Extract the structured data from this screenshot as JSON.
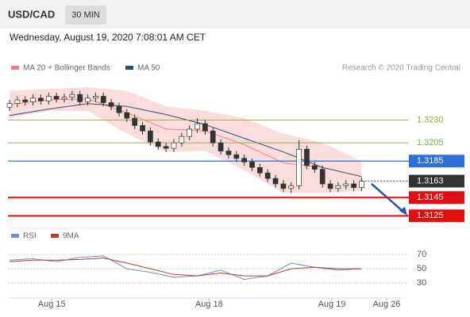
{
  "header": {
    "symbol": "USD/CAD",
    "interval": "30 MIN",
    "timestamp": "Wednesday, August 19, 2020 7:08:01 AM CET",
    "credit": "Research © 2020 Trading Central"
  },
  "chart_data": [
    {
      "type": "candlestick",
      "ylim": [
        1.3114,
        1.3279
      ],
      "xlim": [
        0,
        48.2
      ],
      "xticks": [
        {
          "value": 5.4,
          "label": "Aug 15"
        },
        {
          "value": 25.5,
          "label": "Aug 18"
        },
        {
          "value": 41.2,
          "label": "Aug 19"
        },
        {
          "value": 48.2,
          "label": "Aug 26"
        }
      ],
      "up_color": "#ffffff",
      "down_color": "#333333",
      "open": [
        1.3244,
        1.3248,
        1.3252,
        1.325,
        1.3254,
        1.3251,
        1.3256,
        1.3253,
        1.3255,
        1.3258,
        1.325,
        1.3254,
        1.3256,
        1.3249,
        1.3245,
        1.3238,
        1.3232,
        1.3224,
        1.3218,
        1.3206,
        1.3201,
        1.3199,
        1.3205,
        1.3212,
        1.322,
        1.3226,
        1.3218,
        1.3205,
        1.3196,
        1.3192,
        1.3188,
        1.3184,
        1.3178,
        1.3172,
        1.3166,
        1.316,
        1.3155,
        1.3158,
        1.3198,
        1.318,
        1.3176,
        1.316,
        1.3155,
        1.3158,
        1.316,
        1.3156
      ],
      "high": [
        1.3252,
        1.3256,
        1.3256,
        1.3258,
        1.3258,
        1.326,
        1.326,
        1.3259,
        1.3262,
        1.3262,
        1.3258,
        1.326,
        1.326,
        1.3253,
        1.3249,
        1.3242,
        1.3236,
        1.3228,
        1.3222,
        1.321,
        1.3205,
        1.3209,
        1.3216,
        1.3224,
        1.3232,
        1.323,
        1.3222,
        1.3209,
        1.32,
        1.3196,
        1.3192,
        1.3188,
        1.3182,
        1.3176,
        1.317,
        1.3164,
        1.3162,
        1.3208,
        1.3202,
        1.3184,
        1.318,
        1.3164,
        1.3162,
        1.3164,
        1.3164,
        1.3167
      ],
      "low": [
        1.324,
        1.3244,
        1.3246,
        1.3246,
        1.3247,
        1.3247,
        1.3249,
        1.3249,
        1.3251,
        1.3246,
        1.3246,
        1.325,
        1.3245,
        1.3241,
        1.3234,
        1.3228,
        1.322,
        1.3214,
        1.3202,
        1.3197,
        1.3195,
        1.3195,
        1.3201,
        1.3208,
        1.3216,
        1.3214,
        1.3201,
        1.3192,
        1.3188,
        1.3184,
        1.318,
        1.3174,
        1.3168,
        1.3162,
        1.3156,
        1.3151,
        1.315,
        1.3154,
        1.3176,
        1.3172,
        1.3156,
        1.3151,
        1.3151,
        1.3154,
        1.3152,
        1.3152
      ],
      "close": [
        1.3248,
        1.3252,
        1.325,
        1.3254,
        1.3251,
        1.3256,
        1.3253,
        1.3255,
        1.3258,
        1.325,
        1.3254,
        1.3256,
        1.3249,
        1.3245,
        1.3238,
        1.3232,
        1.3224,
        1.3218,
        1.3206,
        1.3201,
        1.3199,
        1.3205,
        1.3212,
        1.322,
        1.3226,
        1.3218,
        1.3205,
        1.3196,
        1.3192,
        1.3188,
        1.3184,
        1.3178,
        1.3172,
        1.3166,
        1.316,
        1.3155,
        1.3158,
        1.3198,
        1.318,
        1.3176,
        1.316,
        1.3155,
        1.3158,
        1.316,
        1.3156,
        1.3163
      ],
      "series": [
        {
          "name": "MA 20 + Bollinger Bands",
          "color": "#f08080",
          "x": [
            0,
            5,
            10,
            15,
            20,
            25,
            30,
            35,
            40,
            45
          ],
          "values": [
            1.3247,
            1.3252,
            1.3253,
            1.3238,
            1.322,
            1.3218,
            1.3203,
            1.3183,
            1.3178,
            1.3168
          ],
          "upper": [
            1.3262,
            1.3264,
            1.3266,
            1.3262,
            1.3245,
            1.324,
            1.3232,
            1.3215,
            1.3205,
            1.3185
          ],
          "lower": [
            1.3232,
            1.324,
            1.324,
            1.3215,
            1.3195,
            1.3196,
            1.3175,
            1.315,
            1.315,
            1.3152
          ]
        },
        {
          "name": "MA 50",
          "color": "#2b4f7a",
          "x": [
            0,
            5,
            10,
            15,
            20,
            25,
            30,
            35,
            40,
            45
          ],
          "values": [
            1.3235,
            1.3242,
            1.3248,
            1.3245,
            1.3236,
            1.3225,
            1.321,
            1.3195,
            1.3178,
            1.3168
          ]
        }
      ],
      "levels": [
        {
          "value": 1.323,
          "label": "1.3230",
          "color": "#9aa83a",
          "boxed": false
        },
        {
          "value": 1.3205,
          "label": "1.3205",
          "color": "#7cae3a",
          "boxed": false
        },
        {
          "value": 1.3185,
          "label": "1.3185",
          "color": "#2e6fd8",
          "boxed": true
        },
        {
          "value": 1.3163,
          "label": "1.3163",
          "color": "#333333",
          "boxed": true,
          "dashed": true
        },
        {
          "value": 1.3145,
          "label": "1.3145",
          "color": "#e01010",
          "boxed": true
        },
        {
          "value": 1.3125,
          "label": "1.3125",
          "color": "#e01010",
          "boxed": true
        }
      ]
    },
    {
      "type": "line",
      "ylim": [
        10,
        88
      ],
      "yticks": [
        30,
        50,
        70
      ],
      "series": [
        {
          "name": "RSI",
          "color": "#6a8ed8",
          "x": [
            0,
            3,
            6,
            9,
            12,
            15,
            18,
            21,
            24,
            27,
            30,
            33,
            36,
            39,
            42,
            45
          ],
          "values": [
            62,
            64,
            60,
            66,
            68,
            50,
            45,
            38,
            40,
            48,
            35,
            40,
            58,
            52,
            48,
            50
          ]
        },
        {
          "name": "9MA",
          "color": "#c0392b",
          "x": [
            0,
            3,
            6,
            9,
            12,
            15,
            18,
            21,
            24,
            27,
            30,
            33,
            36,
            39,
            42,
            45
          ],
          "values": [
            60,
            62,
            62,
            63,
            65,
            58,
            50,
            42,
            40,
            44,
            40,
            40,
            50,
            52,
            50,
            50
          ]
        }
      ]
    }
  ]
}
